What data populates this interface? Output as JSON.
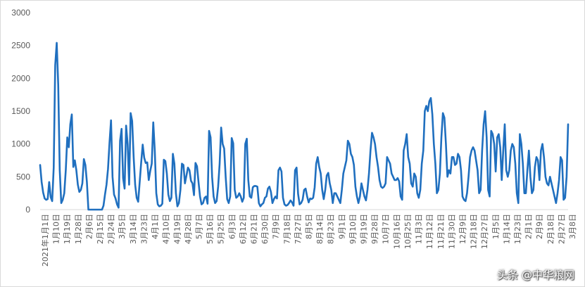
{
  "chart_data": {
    "type": "line",
    "title": "",
    "xlabel": "",
    "ylabel": "",
    "ylim": [
      0,
      3000
    ],
    "yticks": [
      0,
      500,
      1000,
      1500,
      2000,
      2500,
      3000
    ],
    "grid": false,
    "legend": "none",
    "color": "#1f6fbf",
    "x_tick_labels": [
      "2021年1月1日",
      "1月10日",
      "1月19日",
      "1月28日",
      "2月6日",
      "2月15日",
      "2月24日",
      "3月5日",
      "3月14日",
      "3月23日",
      "4月1日",
      "4月10日",
      "4月19日",
      "4月28日",
      "5月7日",
      "5月16日",
      "5月25日",
      "6月3日",
      "6月12日",
      "6月21日",
      "6月30日",
      "7月9日",
      "7月18日",
      "7月27日",
      "8月5日",
      "8月14日",
      "8月23日",
      "9月1日",
      "9月10日",
      "9月19日",
      "9月28日",
      "10月7日",
      "10月16日",
      "10月25日",
      "11月3日",
      "11月12日",
      "11月21日",
      "11月30日",
      "12月9日",
      "12月18日",
      "12月27日",
      "1月5日",
      "1月14日",
      "1月23日",
      "2月1日",
      "2月9日",
      "2月18日",
      "2月27日",
      "3月8日"
    ],
    "series": [
      {
        "values": [
          680,
          420,
          260,
          170,
          150,
          160,
          420,
          190,
          130,
          640,
          2200,
          2540,
          1900,
          600,
          100,
          150,
          250,
          600,
          1100,
          950,
          1300,
          1450,
          650,
          750,
          600,
          380,
          270,
          300,
          400,
          770,
          680,
          420,
          0,
          0,
          0,
          0,
          0,
          0,
          0,
          0,
          0,
          0,
          60,
          230,
          380,
          620,
          1020,
          1360,
          500,
          230,
          170,
          80,
          30,
          1050,
          1230,
          480,
          320,
          1280,
          1000,
          380,
          1470,
          1350,
          800,
          380,
          180,
          120,
          420,
          720,
          990,
          790,
          710,
          720,
          450,
          590,
          700,
          1330,
          900,
          250,
          80,
          50,
          60,
          90,
          760,
          740,
          550,
          230,
          130,
          180,
          850,
          700,
          250,
          50,
          100,
          300,
          700,
          680,
          400,
          520,
          640,
          600,
          440,
          400,
          220,
          710,
          660,
          420,
          200,
          80,
          100,
          180,
          200,
          90,
          1200,
          1100,
          500,
          200,
          100,
          130,
          350,
          700,
          1250,
          1000,
          930,
          500,
          160,
          100,
          200,
          1090,
          1010,
          300,
          180,
          200,
          250,
          200,
          120,
          180,
          1000,
          1080,
          450,
          200,
          180,
          340,
          360,
          360,
          350,
          100,
          50,
          80,
          100,
          180,
          200,
          320,
          350,
          270,
          100,
          160,
          200,
          170,
          600,
          640,
          580,
          180,
          80,
          60,
          70,
          100,
          140,
          110,
          60,
          600,
          640,
          240,
          80,
          100,
          150,
          300,
          320,
          200,
          110,
          170,
          160,
          180,
          340,
          700,
          800,
          650,
          550,
          300,
          160,
          300,
          520,
          560,
          400,
          300,
          100,
          250,
          250,
          200,
          150,
          100,
          300,
          550,
          650,
          750,
          1050,
          1000,
          850,
          800,
          680,
          350,
          200,
          100,
          200,
          400,
          300,
          200,
          140,
          300,
          550,
          900,
          1170,
          1100,
          1000,
          800,
          650,
          450,
          350,
          330,
          350,
          400,
          800,
          750,
          700,
          550,
          500,
          450,
          450,
          480,
          430,
          200,
          150,
          900,
          1000,
          1150,
          800,
          700,
          400,
          350,
          550,
          500,
          250,
          180,
          300,
          700,
          900,
          1500,
          1580,
          1500,
          1650,
          1700,
          1450,
          1000,
          700,
          250,
          300,
          550,
          1100,
          1470,
          1400,
          1000,
          500,
          600,
          550,
          800,
          800,
          680,
          700,
          850,
          800,
          600,
          200,
          150,
          130,
          250,
          500,
          800,
          900,
          950,
          900,
          750,
          600,
          250,
          300,
          900,
          1300,
          1500,
          1100,
          300,
          200,
          1200,
          1150,
          1000,
          580,
          1100,
          1150,
          950,
          450,
          900,
          1300,
          600,
          500,
          600,
          900,
          1000,
          950,
          700,
          250,
          100,
          1150,
          1000,
          700,
          250,
          250,
          600,
          900,
          500,
          250,
          300,
          650,
          800,
          750,
          450,
          900,
          1000,
          800,
          500,
          400,
          370,
          500,
          400,
          300,
          200,
          100,
          250,
          450,
          800,
          750,
          150,
          180,
          500,
          1300
        ]
      }
    ]
  },
  "watermark": "头条 @中华粮网"
}
